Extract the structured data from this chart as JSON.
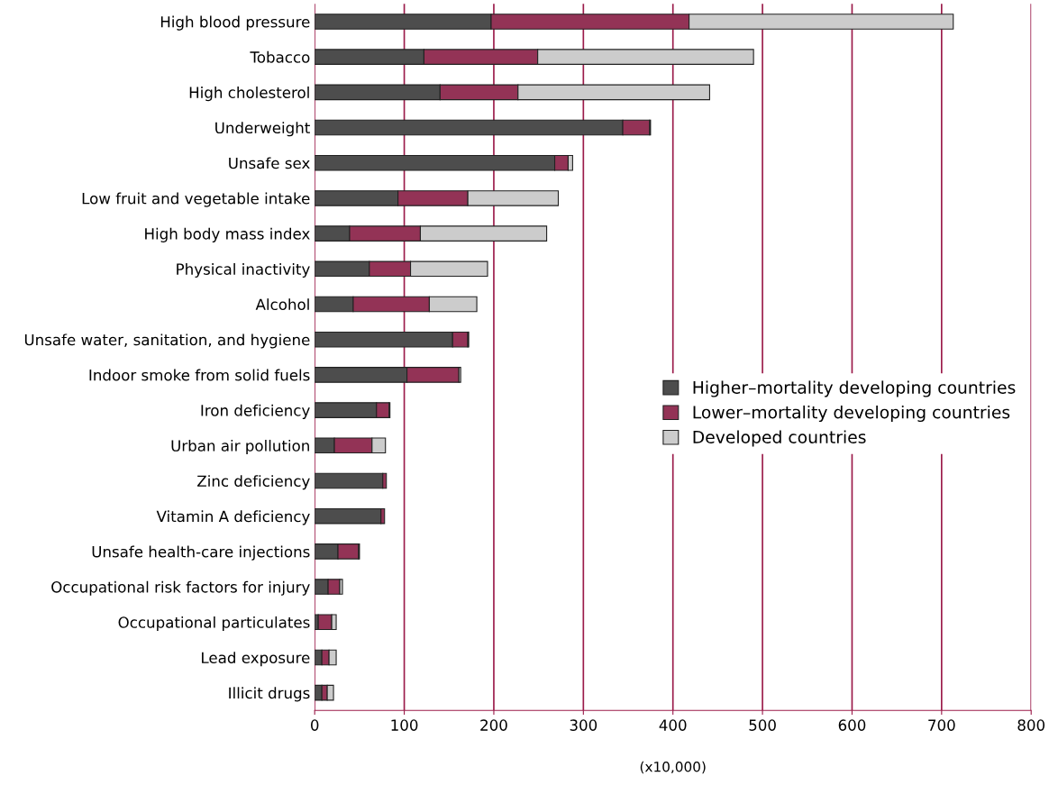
{
  "chart_data": {
    "type": "bar",
    "orientation": "horizontal",
    "stacked": true,
    "xlabel": "(x10,000)",
    "categories": [
      "High blood pressure",
      "Tobacco",
      "High cholesterol",
      "Underweight",
      "Unsafe sex",
      "Low fruit and vegetable intake",
      "High body mass index",
      "Physical inactivity",
      "Alcohol",
      "Unsafe water, sanitation, and hygiene",
      "Indoor smoke from solid fuels",
      "Iron deficiency",
      "Urban air pollution",
      "Zinc deficiency",
      "Vitamin A deficiency",
      "Unsafe health-care injections",
      "Occupational risk factors for injury",
      "Occupational particulates",
      "Lead exposure",
      "Illicit drugs"
    ],
    "series": [
      {
        "name": "Higher–mortality developing countries",
        "color": "#4d4d4d",
        "values": [
          197,
          122,
          140,
          344,
          268,
          93,
          39,
          61,
          43,
          154,
          103,
          69,
          22,
          76,
          74,
          26,
          15,
          4,
          8,
          8
        ]
      },
      {
        "name": "Lower–mortality developing countries",
        "color": "#933356",
        "values": [
          221,
          127,
          87,
          30,
          15,
          78,
          79,
          46,
          85,
          17,
          58,
          14,
          42,
          4,
          4,
          23,
          13,
          15,
          8,
          6
        ]
      },
      {
        "name": "Developed countries",
        "color": "#cccccc",
        "values": [
          295,
          241,
          214,
          1,
          5,
          101,
          141,
          86,
          53,
          1,
          2,
          1,
          15,
          null,
          null,
          1,
          3,
          5,
          8,
          7
        ]
      }
    ],
    "xlim": [
      0,
      800
    ],
    "xticks": [
      0,
      100,
      200,
      300,
      400,
      500,
      600,
      700,
      800
    ],
    "grid": "x",
    "legend": "right"
  }
}
